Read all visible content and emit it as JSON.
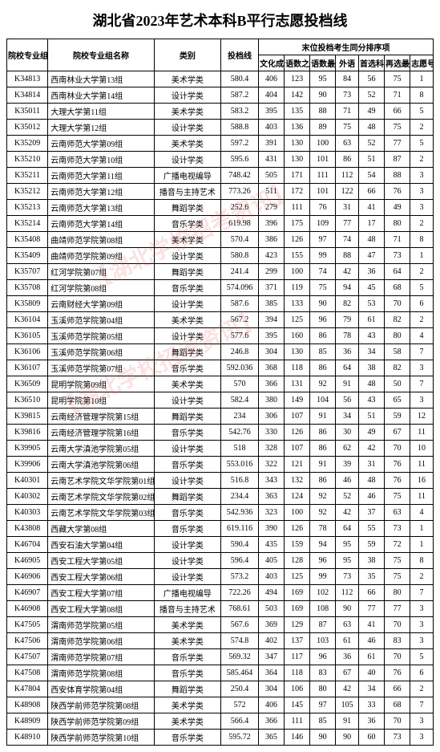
{
  "title": "湖北省2023年艺术本科B平行志愿投档线",
  "headers": {
    "code": "院校专业组代号",
    "name": "院校专业组名称",
    "type": "类别",
    "line": "投档线",
    "group": "末位投档考生同分排序项",
    "wh": "文化成绩",
    "sum": "语数之和",
    "max": "语数最高",
    "fl": "外语",
    "sx": "首选科目",
    "zx": "再选最高",
    "zy": "志愿号"
  },
  "col_widths": [
    "48",
    "124",
    "78",
    "44",
    "30",
    "30",
    "30",
    "27",
    "30",
    "30",
    "27"
  ],
  "watermark": "【湖北学校招考资讯】",
  "rows": [
    [
      "K34813",
      "西南林业大学第13组",
      "美术学类",
      "580.4",
      "406",
      "123",
      "95",
      "84",
      "56",
      "75",
      "1"
    ],
    [
      "K34814",
      "西南林业大学第14组",
      "设计学类",
      "587.2",
      "404",
      "142",
      "90",
      "73",
      "52",
      "71",
      "8"
    ],
    [
      "K35011",
      "大理大学第11组",
      "美术学类",
      "583.2",
      "395",
      "135",
      "88",
      "71",
      "49",
      "66",
      "5"
    ],
    [
      "K35012",
      "大理大学第12组",
      "设计学类",
      "588.8",
      "403",
      "136",
      "89",
      "75",
      "48",
      "75",
      "2"
    ],
    [
      "K35209",
      "云南师范大学第09组",
      "美术学类",
      "597.2",
      "391",
      "130",
      "100",
      "63",
      "52",
      "77",
      "5"
    ],
    [
      "K35210",
      "云南师范大学第10组",
      "设计学类",
      "595.6",
      "431",
      "130",
      "101",
      "86",
      "51",
      "87",
      "2"
    ],
    [
      "K35211",
      "云南师范大学第11组",
      "广播电视编导",
      "748.42",
      "505",
      "171",
      "111",
      "112",
      "54",
      "88",
      "3"
    ],
    [
      "K35212",
      "云南师范大学第12组",
      "播音与主持艺术",
      "773.26",
      "511",
      "172",
      "101",
      "122",
      "66",
      "76",
      "3"
    ],
    [
      "K35213",
      "云南师范大学第13组",
      "舞蹈学类",
      "252.6",
      "279",
      "111",
      "76",
      "31",
      "41",
      "49",
      "3"
    ],
    [
      "K35214",
      "云南师范大学第14组",
      "音乐学类",
      "619.98",
      "396",
      "175",
      "109",
      "77",
      "17",
      "80",
      "2"
    ],
    [
      "K35408",
      "曲靖师范学院第08组",
      "美术学类",
      "570.4",
      "386",
      "126",
      "97",
      "74",
      "48",
      "71",
      "8"
    ],
    [
      "K35409",
      "曲靖师范学院第09组",
      "设计学类",
      "580.8",
      "423",
      "155",
      "99",
      "88",
      "47",
      "73",
      "1"
    ],
    [
      "K35707",
      "红河学院第07组",
      "舞蹈学类",
      "241.4",
      "299",
      "100",
      "74",
      "42",
      "36",
      "64",
      "2"
    ],
    [
      "K35708",
      "红河学院第08组",
      "音乐学类",
      "574.096",
      "371",
      "119",
      "75",
      "94",
      "45",
      "68",
      "5"
    ],
    [
      "K35809",
      "云南财经大学第09组",
      "设计学类",
      "587.6",
      "385",
      "133",
      "90",
      "82",
      "53",
      "70",
      "6"
    ],
    [
      "K36104",
      "玉溪师范学院第04组",
      "美术学类",
      "567.2",
      "394",
      "125",
      "96",
      "79",
      "61",
      "82",
      "2"
    ],
    [
      "K36105",
      "玉溪师范学院第05组",
      "设计学类",
      "577.6",
      "395",
      "160",
      "86",
      "78",
      "43",
      "80",
      "4"
    ],
    [
      "K36106",
      "玉溪师范学院第06组",
      "舞蹈学类",
      "246.8",
      "304",
      "130",
      "85",
      "36",
      "34",
      "58",
      "7"
    ],
    [
      "K36107",
      "玉溪师范学院第07组",
      "音乐学类",
      "592.036",
      "368",
      "118",
      "86",
      "64",
      "38",
      "82",
      "3"
    ],
    [
      "K36509",
      "昆明学院第09组",
      "美术学类",
      "570",
      "366",
      "131",
      "92",
      "91",
      "48",
      "50",
      "7"
    ],
    [
      "K36510",
      "昆明学院第10组",
      "设计学类",
      "582.4",
      "380",
      "149",
      "104",
      "56",
      "43",
      "65",
      "3"
    ],
    [
      "K39815",
      "云南经济管理学院第15组",
      "舞蹈学类",
      "234",
      "306",
      "107",
      "91",
      "34",
      "51",
      "59",
      "12"
    ],
    [
      "K39816",
      "云南经济管理学院第16组",
      "音乐学类",
      "542.76",
      "330",
      "126",
      "86",
      "30",
      "49",
      "67",
      "11"
    ],
    [
      "K39905",
      "云南大学滇池学院第05组",
      "设计学类",
      "518",
      "328",
      "107",
      "86",
      "62",
      "42",
      "70",
      "10"
    ],
    [
      "K39906",
      "云南大学滇池学院第06组",
      "音乐学类",
      "553.016",
      "322",
      "121",
      "91",
      "39",
      "31",
      "76",
      "11"
    ],
    [
      "K40301",
      "云南艺术学院文华学院第01组",
      "设计学类",
      "516.8",
      "343",
      "132",
      "86",
      "46",
      "48",
      "76",
      "16"
    ],
    [
      "K40302",
      "云南艺术学院文华学院第02组",
      "舞蹈学类",
      "234.4",
      "363",
      "124",
      "92",
      "52",
      "46",
      "75",
      "11"
    ],
    [
      "K40303",
      "云南艺术学院文华学院第03组",
      "音乐学类",
      "542.936",
      "323",
      "100",
      "92",
      "42",
      "37",
      "63",
      "4"
    ],
    [
      "K43808",
      "西藏大学第08组",
      "音乐学类",
      "619.116",
      "390",
      "126",
      "78",
      "64",
      "55",
      "73",
      "1"
    ],
    [
      "K46704",
      "西安石油大学第04组",
      "设计学类",
      "590.4",
      "435",
      "159",
      "94",
      "95",
      "59",
      "72",
      "1"
    ],
    [
      "K46905",
      "西安工程大学第05组",
      "设计学类",
      "596.4",
      "405",
      "128",
      "96",
      "95",
      "38",
      "75",
      "8"
    ],
    [
      "K46906",
      "西安工程大学第06组",
      "设计学类",
      "573.2",
      "403",
      "125",
      "99",
      "73",
      "35",
      "75",
      "2"
    ],
    [
      "K46907",
      "西安工程大学第07组",
      "广播电视编导",
      "722.26",
      "494",
      "169",
      "102",
      "112",
      "66",
      "80",
      "7"
    ],
    [
      "K46908",
      "西安工程大学第08组",
      "播音与主持艺术",
      "768.61",
      "503",
      "169",
      "108",
      "90",
      "77",
      "77",
      "3"
    ],
    [
      "K47505",
      "渭南师范学院第05组",
      "美术学类",
      "567.6",
      "369",
      "129",
      "87",
      "63",
      "41",
      "70",
      "3"
    ],
    [
      "K47506",
      "渭南师范学院第06组",
      "美术学类",
      "574.8",
      "402",
      "137",
      "103",
      "61",
      "46",
      "83",
      "3"
    ],
    [
      "K47507",
      "渭南师范学院第07组",
      "音乐学类",
      "569.32",
      "347",
      "117",
      "96",
      "36",
      "61",
      "70",
      "5"
    ],
    [
      "K47508",
      "渭南师范学院第08组",
      "音乐学类",
      "585.464",
      "364",
      "118",
      "83",
      "67",
      "40",
      "76",
      "6"
    ],
    [
      "K47804",
      "西安体育学院第04组",
      "舞蹈学类",
      "250.4",
      "304",
      "106",
      "80",
      "42",
      "34",
      "66",
      "2"
    ],
    [
      "K48908",
      "陕西学前师范学院第08组",
      "美术学类",
      "572",
      "406",
      "145",
      "97",
      "105",
      "33",
      "68",
      "7"
    ],
    [
      "K48909",
      "陕西学前师范学院第09组",
      "美术学类",
      "566.4",
      "366",
      "111",
      "85",
      "91",
      "36",
      "70",
      "3"
    ],
    [
      "K48910",
      "陕西学前师范学院第10组",
      "音乐学类",
      "595.72",
      "365",
      "146",
      "90",
      "90",
      "60",
      "73",
      "3"
    ]
  ]
}
